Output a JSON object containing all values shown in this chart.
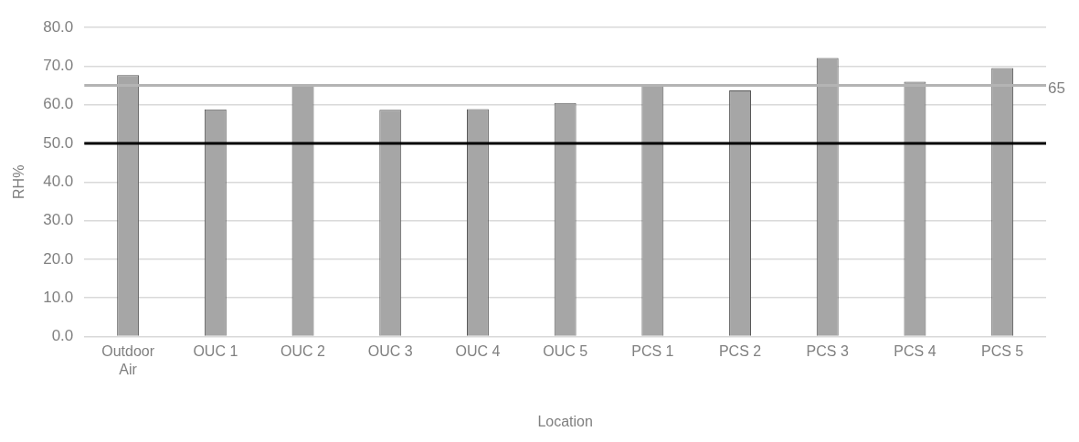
{
  "chart_data": {
    "type": "bar",
    "xlabel": "Location",
    "ylabel": "RH%",
    "categories": [
      "Outdoor Air",
      "OUC 1",
      "OUC 2",
      "OUC 3",
      "OUC 4",
      "OUC 5",
      "PCS 1",
      "PCS 2",
      "PCS 3",
      "PCS 4",
      "PCS 5"
    ],
    "values": [
      67.7,
      58.8,
      65.2,
      58.7,
      58.9,
      60.5,
      65.3,
      63.7,
      72.1,
      66.0,
      69.5
    ],
    "color": "#a6a6a6",
    "ylim": [
      0,
      80
    ],
    "yticks": [
      {
        "value": 0,
        "label": "0.0"
      },
      {
        "value": 10,
        "label": "10.0"
      },
      {
        "value": 20,
        "label": "20.0"
      },
      {
        "value": 30,
        "label": "30.0"
      },
      {
        "value": 40,
        "label": "40.0"
      },
      {
        "value": 50,
        "label": "50.0"
      },
      {
        "value": 60,
        "label": "60.0"
      },
      {
        "value": 70,
        "label": "70.0"
      },
      {
        "value": 80,
        "label": "80.0"
      }
    ],
    "grid": "y",
    "ref_lines": [
      {
        "axis": "y",
        "value": 50,
        "label": null,
        "color": "#000000"
      },
      {
        "axis": "y",
        "value": 65,
        "label": "65",
        "color": "#b4b4b4"
      }
    ]
  }
}
